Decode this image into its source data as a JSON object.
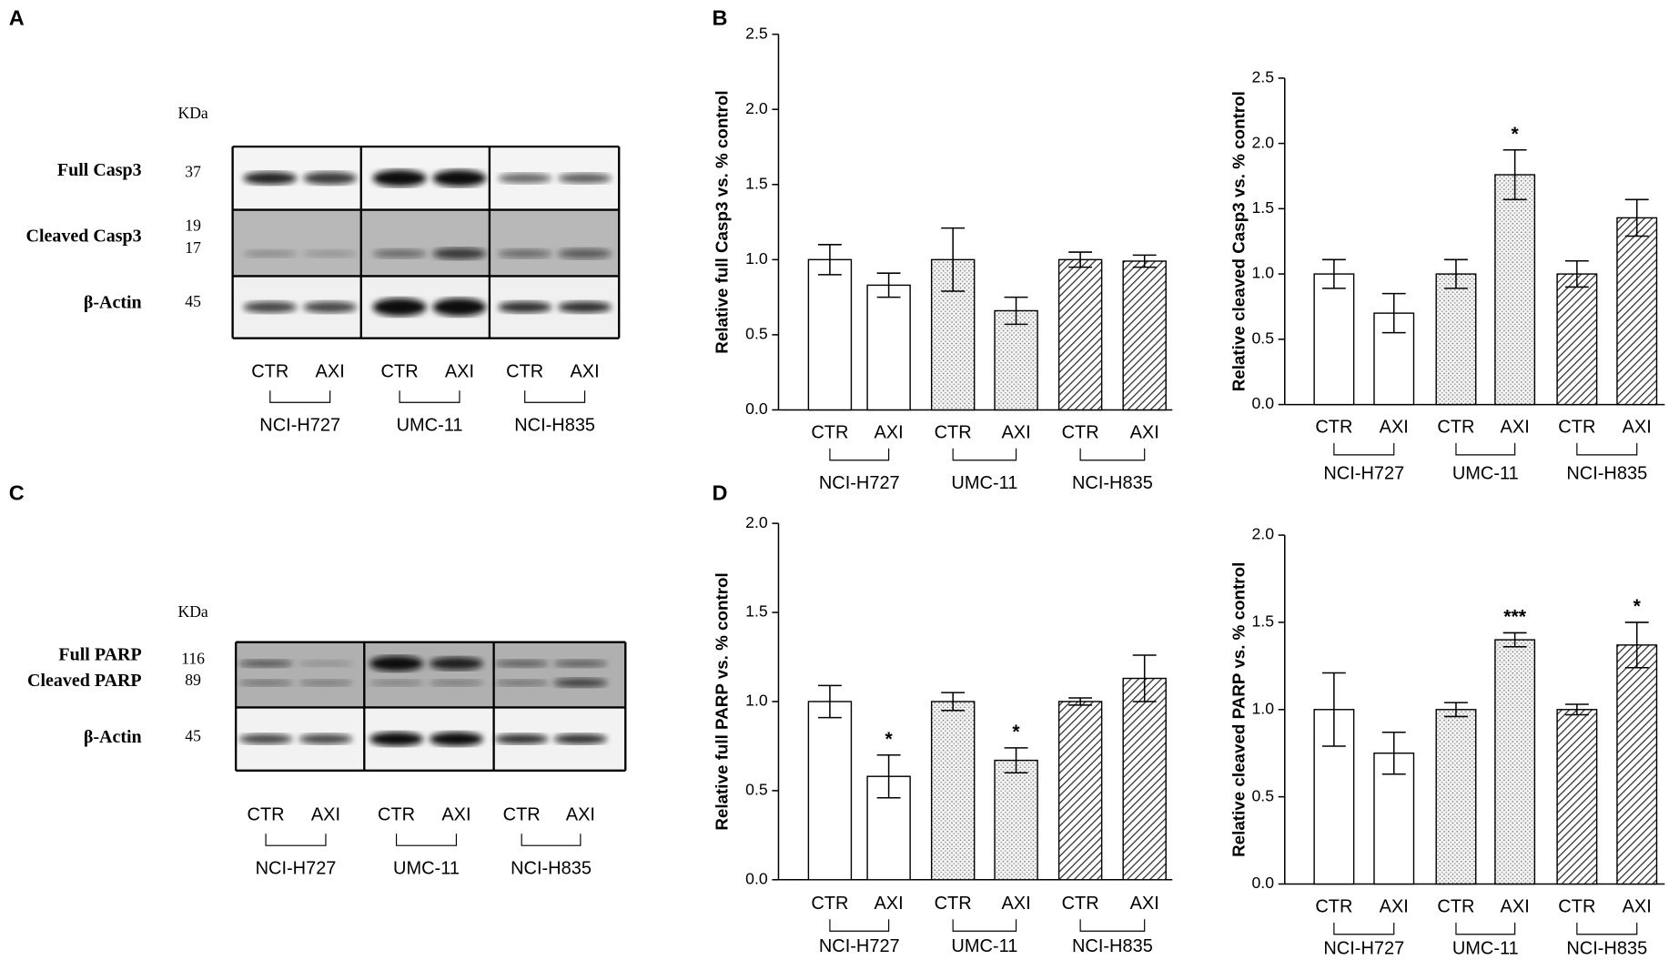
{
  "panel_labels": [
    "A",
    "B",
    "C",
    "D"
  ],
  "blots": [
    {
      "kda_header": "KDa",
      "rows": [
        {
          "label": "Full Casp3",
          "kda": [
            37
          ]
        },
        {
          "label": "Cleaved Casp3",
          "kda": [
            19,
            17
          ]
        },
        {
          "label": "β-Actin",
          "kda": [
            45
          ]
        }
      ],
      "lanes": [
        "CTR",
        "AXI",
        "CTR",
        "AXI",
        "CTR",
        "AXI"
      ],
      "groups": [
        "NCI-H727",
        "UMC-11",
        "NCI-H835"
      ]
    },
    {
      "kda_header": "KDa",
      "rows": [
        {
          "label": "Full PARP",
          "kda": [
            116
          ]
        },
        {
          "label": "Cleaved PARP",
          "kda": [
            89
          ]
        },
        {
          "label": "β-Actin",
          "kda": [
            45
          ]
        }
      ],
      "lanes": [
        "CTR",
        "AXI",
        "CTR",
        "AXI",
        "CTR",
        "AXI"
      ],
      "groups": [
        "NCI-H727",
        "UMC-11",
        "NCI-H835"
      ]
    }
  ],
  "chart_data": [
    {
      "type": "bar",
      "ylabel": "Relative full Casp3 vs. % control",
      "categories": [
        "CTR",
        "AXI",
        "CTR",
        "AXI",
        "CTR",
        "AXI"
      ],
      "groups": [
        "NCI-H727",
        "UMC-11",
        "NCI-H835"
      ],
      "values": [
        1.0,
        0.83,
        1.0,
        0.66,
        1.0,
        0.99
      ],
      "errors": [
        0.1,
        0.08,
        0.21,
        0.09,
        0.05,
        0.04
      ],
      "significance": [
        null,
        null,
        null,
        null,
        null,
        null
      ],
      "patterns": [
        "open",
        "open",
        "dots",
        "dots",
        "hatch",
        "hatch"
      ],
      "color": "#000000",
      "ylim": [
        0,
        2.5
      ],
      "yticks": [
        {
          "value": 0,
          "label": "0.0"
        },
        0.5,
        {
          "value": 1,
          "label": "1.0"
        },
        1.5,
        {
          "value": 2,
          "label": "2.0"
        },
        2.5
      ]
    },
    {
      "type": "bar",
      "ylabel": "Relative cleaved Casp3 vs. % control",
      "categories": [
        "CTR",
        "AXI",
        "CTR",
        "AXI",
        "CTR",
        "AXI"
      ],
      "groups": [
        "NCI-H727",
        "UMC-11",
        "NCI-H835"
      ],
      "values": [
        1.0,
        0.7,
        1.0,
        1.76,
        1.0,
        1.43
      ],
      "errors": [
        0.11,
        0.15,
        0.11,
        0.19,
        0.1,
        0.14
      ],
      "significance": [
        null,
        null,
        null,
        "*",
        null,
        null
      ],
      "patterns": [
        "open",
        "open",
        "dots",
        "dots",
        "hatch",
        "hatch"
      ],
      "color": "#000000",
      "ylim": [
        0,
        2.5
      ],
      "yticks": [
        {
          "value": 0,
          "label": "0.0"
        },
        0.5,
        {
          "value": 1,
          "label": "1.0"
        },
        1.5,
        {
          "value": 2,
          "label": "2.0"
        },
        2.5
      ]
    },
    {
      "type": "bar",
      "ylabel": "Relative full PARP vs. % control",
      "categories": [
        "CTR",
        "AXI",
        "CTR",
        "AXI",
        "CTR",
        "AXI"
      ],
      "groups": [
        "NCI-H727",
        "UMC-11",
        "NCI-H835"
      ],
      "values": [
        1.0,
        0.58,
        1.0,
        0.67,
        1.0,
        1.13
      ],
      "errors": [
        0.09,
        0.12,
        0.05,
        0.07,
        0.02,
        0.13
      ],
      "significance": [
        null,
        "*",
        null,
        "*",
        null,
        null
      ],
      "patterns": [
        "open",
        "open",
        "dots",
        "dots",
        "hatch",
        "hatch"
      ],
      "color": "#000000",
      "ylim": [
        0,
        2
      ],
      "yticks": [
        {
          "value": 0,
          "label": "0.0"
        },
        0.5,
        {
          "value": 1,
          "label": "1.0"
        },
        1.5,
        {
          "value": 2,
          "label": "2.0"
        }
      ]
    },
    {
      "type": "bar",
      "ylabel": "Relative cleaved PARP vs. % control",
      "categories": [
        "CTR",
        "AXI",
        "CTR",
        "AXI",
        "CTR",
        "AXI"
      ],
      "groups": [
        "NCI-H727",
        "UMC-11",
        "NCI-H835"
      ],
      "values": [
        1.0,
        0.75,
        1.0,
        1.4,
        1.0,
        1.37
      ],
      "errors": [
        0.21,
        0.12,
        0.04,
        0.04,
        0.03,
        0.13
      ],
      "significance": [
        null,
        null,
        null,
        "***",
        null,
        "*"
      ],
      "patterns": [
        "open",
        "open",
        "dots",
        "dots",
        "hatch",
        "hatch"
      ],
      "color": "#000000",
      "ylim": [
        0,
        2
      ],
      "yticks": [
        {
          "value": 0,
          "label": "0.0"
        },
        0.5,
        {
          "value": 1,
          "label": "1.0"
        },
        1.5,
        {
          "value": 2,
          "label": "2.0"
        }
      ]
    }
  ]
}
